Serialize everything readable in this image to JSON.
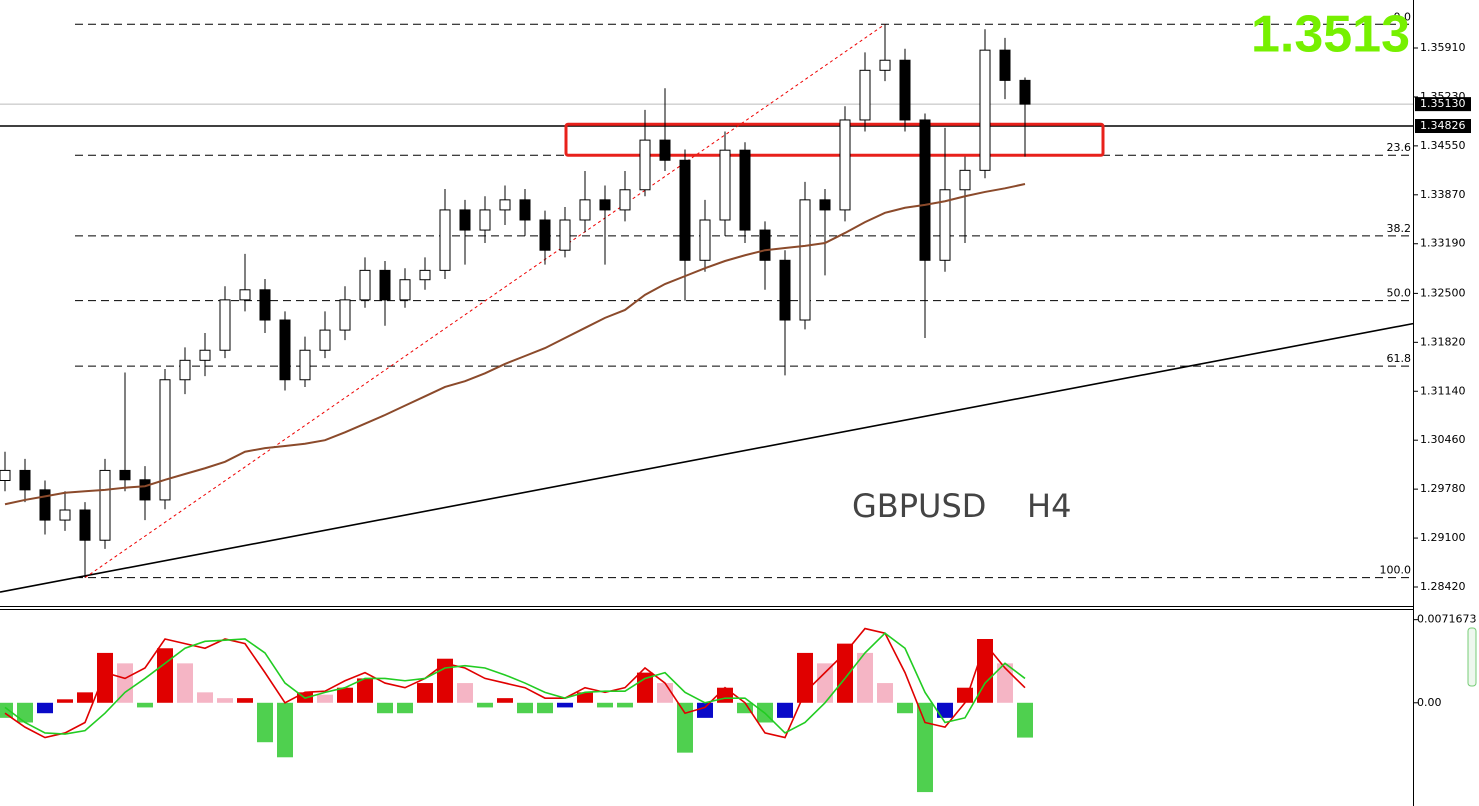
{
  "chart_data": [
    {
      "type": "candlestick",
      "symbol": "GBPUSD",
      "timeframe": "H4",
      "price_display": "1.3513",
      "ylim": [
        1.28156,
        1.36577
      ],
      "yticks": [
        {
          "value": 1.3591,
          "label": "1.35910"
        },
        {
          "value": 1.3523,
          "label": "1.35230"
        },
        {
          "value": 1.3455,
          "label": "1.34550"
        },
        {
          "value": 1.3387,
          "label": "1.33870"
        },
        {
          "value": 1.3319,
          "label": "1.33190"
        },
        {
          "value": 1.325,
          "label": "1.32500"
        },
        {
          "value": 1.3182,
          "label": "1.31820"
        },
        {
          "value": 1.3114,
          "label": "1.31140"
        },
        {
          "value": 1.3046,
          "label": "1.30460"
        },
        {
          "value": 1.2978,
          "label": "1.29780"
        },
        {
          "value": 1.291,
          "label": "1.29100"
        },
        {
          "value": 1.2842,
          "label": "1.28420"
        }
      ],
      "current_price": {
        "value": 1.3513,
        "label": "1.35130"
      },
      "level_line": {
        "value": 1.34826,
        "label": "1.34826"
      },
      "fib_levels": [
        {
          "label": "0.0",
          "price": 1.3624
        },
        {
          "label": "23.6",
          "price": 1.3442
        },
        {
          "label": "38.2",
          "price": 1.333
        },
        {
          "label": "50.0",
          "price": 1.324
        },
        {
          "label": "61.8",
          "price": 1.3149
        },
        {
          "label": "100.0",
          "price": 1.2855
        }
      ],
      "trendline": [
        1.2835,
        1.3208
      ],
      "zone": [
        1.3442,
        1.3485
      ],
      "zone_color": "#e8211b",
      "ma_color": "#8b4a2b",
      "open": [
        1.299,
        1.3004,
        1.2977,
        1.2935,
        1.2949,
        1.2907,
        1.3004,
        1.2991,
        1.2963,
        1.313,
        1.3157,
        1.3171,
        1.3241,
        1.3255,
        1.3213,
        1.313,
        1.3171,
        1.3199,
        1.3241,
        1.3282,
        1.3241,
        1.3269,
        1.3282,
        1.3366,
        1.3338,
        1.3366,
        1.338,
        1.3352,
        1.331,
        1.3352,
        1.338,
        1.3366,
        1.3394,
        1.3463,
        1.3435,
        1.3296,
        1.3352,
        1.3449,
        1.3338,
        1.3296,
        1.3213,
        1.338,
        1.3366,
        1.3491,
        1.356,
        1.3574,
        1.3491,
        1.3296,
        1.3394,
        1.3421,
        1.3588,
        1.3546
      ],
      "high": [
        1.303,
        1.302,
        1.299,
        1.2975,
        1.296,
        1.302,
        1.314,
        1.301,
        1.3145,
        1.3175,
        1.3195,
        1.326,
        1.3305,
        1.327,
        1.3225,
        1.319,
        1.3225,
        1.326,
        1.33,
        1.3295,
        1.3285,
        1.33,
        1.3395,
        1.338,
        1.3385,
        1.34,
        1.3395,
        1.3365,
        1.337,
        1.342,
        1.34,
        1.342,
        1.3505,
        1.3535,
        1.345,
        1.338,
        1.3475,
        1.346,
        1.335,
        1.331,
        1.3405,
        1.3395,
        1.351,
        1.3585,
        1.3624,
        1.359,
        1.35,
        1.348,
        1.344,
        1.3617,
        1.3605,
        1.355
      ],
      "low": [
        1.2975,
        1.296,
        1.2915,
        1.292,
        1.2855,
        1.2895,
        1.2975,
        1.2935,
        1.295,
        1.311,
        1.3135,
        1.316,
        1.3225,
        1.3195,
        1.3115,
        1.312,
        1.316,
        1.3185,
        1.323,
        1.3205,
        1.323,
        1.3255,
        1.327,
        1.329,
        1.332,
        1.3345,
        1.333,
        1.329,
        1.33,
        1.3335,
        1.329,
        1.335,
        1.3385,
        1.342,
        1.324,
        1.328,
        1.333,
        1.332,
        1.3255,
        1.3136,
        1.32,
        1.3275,
        1.335,
        1.3475,
        1.3545,
        1.3475,
        1.3188,
        1.328,
        1.332,
        1.341,
        1.352,
        1.344
      ],
      "close": [
        1.3004,
        1.2977,
        1.2935,
        1.2949,
        1.2907,
        1.3004,
        1.2991,
        1.2963,
        1.313,
        1.3157,
        1.3171,
        1.3241,
        1.3255,
        1.3213,
        1.313,
        1.3171,
        1.3199,
        1.3241,
        1.3282,
        1.3241,
        1.3269,
        1.3282,
        1.3366,
        1.3338,
        1.3366,
        1.338,
        1.3352,
        1.331,
        1.3352,
        1.338,
        1.3366,
        1.3394,
        1.3463,
        1.3435,
        1.3296,
        1.3352,
        1.3449,
        1.3338,
        1.3296,
        1.3213,
        1.338,
        1.3366,
        1.3491,
        1.356,
        1.3574,
        1.3491,
        1.3296,
        1.3394,
        1.3421,
        1.3588,
        1.3546,
        1.3513
      ],
      "ma_values": [
        1.2957,
        1.2963,
        1.2968,
        1.2973,
        1.2975,
        1.2977,
        1.298,
        1.2982,
        1.2991,
        1.2999,
        1.3007,
        1.3016,
        1.303,
        1.3035,
        1.3038,
        1.3041,
        1.3046,
        1.3057,
        1.3069,
        1.3081,
        1.3094,
        1.3107,
        1.312,
        1.3128,
        1.3139,
        1.3152,
        1.3163,
        1.3174,
        1.3188,
        1.3202,
        1.3216,
        1.3227,
        1.3248,
        1.3263,
        1.3274,
        1.3285,
        1.3295,
        1.3303,
        1.331,
        1.3313,
        1.3316,
        1.332,
        1.3334,
        1.3349,
        1.3362,
        1.3369,
        1.3373,
        1.3378,
        1.3385,
        1.3391,
        1.3396,
        1.3402
      ]
    },
    {
      "type": "macd",
      "ylim": [
        -0.0089,
        0.008
      ],
      "yticks": [
        {
          "value": 0.0071673,
          "label": "0.0071673"
        },
        {
          "value": 0,
          "label": "0.00"
        }
      ],
      "hist_colors": [
        "#e00000",
        "#f5b5c5",
        "#4fd04f",
        "#0a0ac8"
      ],
      "histogram": [
        -0.0013,
        -0.0017,
        -0.0009,
        0.0003,
        0.0009,
        0.0043,
        0.0034,
        -0.0004,
        0.0047,
        0.0034,
        0.0009,
        0.0004,
        0.0004,
        -0.0034,
        -0.0047,
        0.0009,
        0.0007,
        0.0013,
        0.0021,
        -0.0009,
        -0.0009,
        0.0017,
        0.0038,
        0.0017,
        -0.0004,
        0.0004,
        -0.0009,
        -0.0009,
        -0.0004,
        0.0009,
        -0.0004,
        -0.0004,
        0.0026,
        0.0017,
        -0.0043,
        -0.0013,
        0.0013,
        -0.0009,
        -0.0017,
        -0.0013,
        0.0043,
        0.0034,
        0.0051,
        0.0043,
        0.0017,
        -0.0009,
        -0.0077,
        -0.0013,
        0.0013,
        0.0055,
        0.0034,
        -0.003
      ],
      "series": [
        {
          "color": "#e00000",
          "values": [
            -0.0009,
            -0.0021,
            -0.003,
            -0.0026,
            -0.0017,
            0.0026,
            0.0021,
            0.003,
            0.0055,
            0.0051,
            0.0047,
            0.0055,
            0.0051,
            0.0026,
            0,
            0.0009,
            0.001,
            0.0019,
            0.0026,
            0.0017,
            0.0013,
            0.0021,
            0.0034,
            0.003,
            0.0021,
            0.0017,
            0.0013,
            0.0004,
            0.0004,
            0.0013,
            0.0009,
            0.0013,
            0.003,
            0.0017,
            -0.0009,
            -0.0004,
            0.0013,
            0,
            -0.0026,
            -0.003,
            0.0009,
            0.0026,
            0.0043,
            0.0064,
            0.006,
            0.0026,
            -0.0017,
            -0.0021,
            0,
            0.0051,
            0.003,
            0.0013
          ]
        },
        {
          "color": "#22cc22",
          "values": [
            -0.0004,
            -0.0017,
            -0.0026,
            -0.0027,
            -0.0024,
            -0.0009,
            0.0009,
            0.0021,
            0.0034,
            0.0047,
            0.0053,
            0.0054,
            0.0055,
            0.0043,
            0.0017,
            0.0004,
            0.0009,
            0.0013,
            0.0021,
            0.0021,
            0.0019,
            0.0021,
            0.003,
            0.0032,
            0.003,
            0.0024,
            0.0017,
            0.0009,
            0.0004,
            0.0009,
            0.001,
            0.001,
            0.0021,
            0.0026,
            0.0009,
            0,
            0.0004,
            0.0004,
            -0.0009,
            -0.0026,
            -0.0017,
            0,
            0.0021,
            0.0043,
            0.006,
            0.0047,
            0.0009,
            -0.0017,
            -0.0013,
            0.0017,
            0.0034,
            0.0021
          ]
        }
      ]
    }
  ]
}
